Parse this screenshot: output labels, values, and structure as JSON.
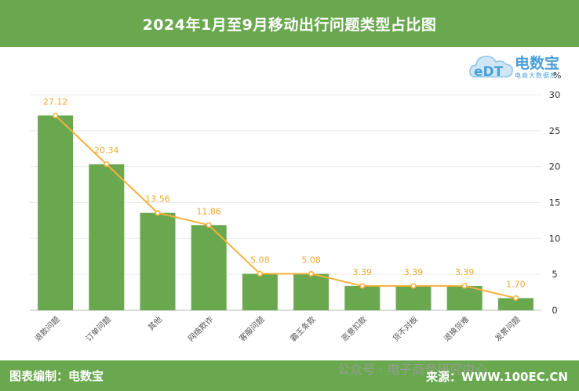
{
  "header": {
    "title": "2024年1月至9月移动出行问题类型占比图"
  },
  "logo": {
    "brand": "电数宝",
    "sub": "电商大数据库",
    "icon": "edt-cloud-logo"
  },
  "unit": "%",
  "footer": {
    "left": "图表编制：电数宝",
    "right": "来源：WWW.100EC.CN",
    "watermark": "公众号 · 电子商务研究中心"
  },
  "colors": {
    "bar": "#6aa84f",
    "line": "#f4b03c",
    "header": "#6aa84f",
    "label": "#f0a830"
  },
  "chart_data": {
    "type": "bar",
    "title": "2024年1月至9月移动出行问题类型占比图",
    "categories": [
      "退款问题",
      "订单问题",
      "其他",
      "网络欺诈",
      "客服问题",
      "霸王条款",
      "恶意扣款",
      "货不对板",
      "退换货难",
      "发票问题"
    ],
    "values": [
      27.12,
      20.34,
      13.56,
      11.86,
      5.08,
      5.08,
      3.39,
      3.39,
      3.39,
      1.7
    ],
    "labels": [
      "27.12",
      "20.34",
      "13.56",
      "11.86",
      "5.08",
      "5.08",
      "3.39",
      "3.39",
      "3.39",
      "1.70"
    ],
    "overlay": "line",
    "ylim": [
      0,
      30
    ],
    "yticks": [
      "0",
      "5",
      "10",
      "15",
      "20",
      "25",
      "30"
    ],
    "yaxis_position": "right",
    "grid": true
  }
}
